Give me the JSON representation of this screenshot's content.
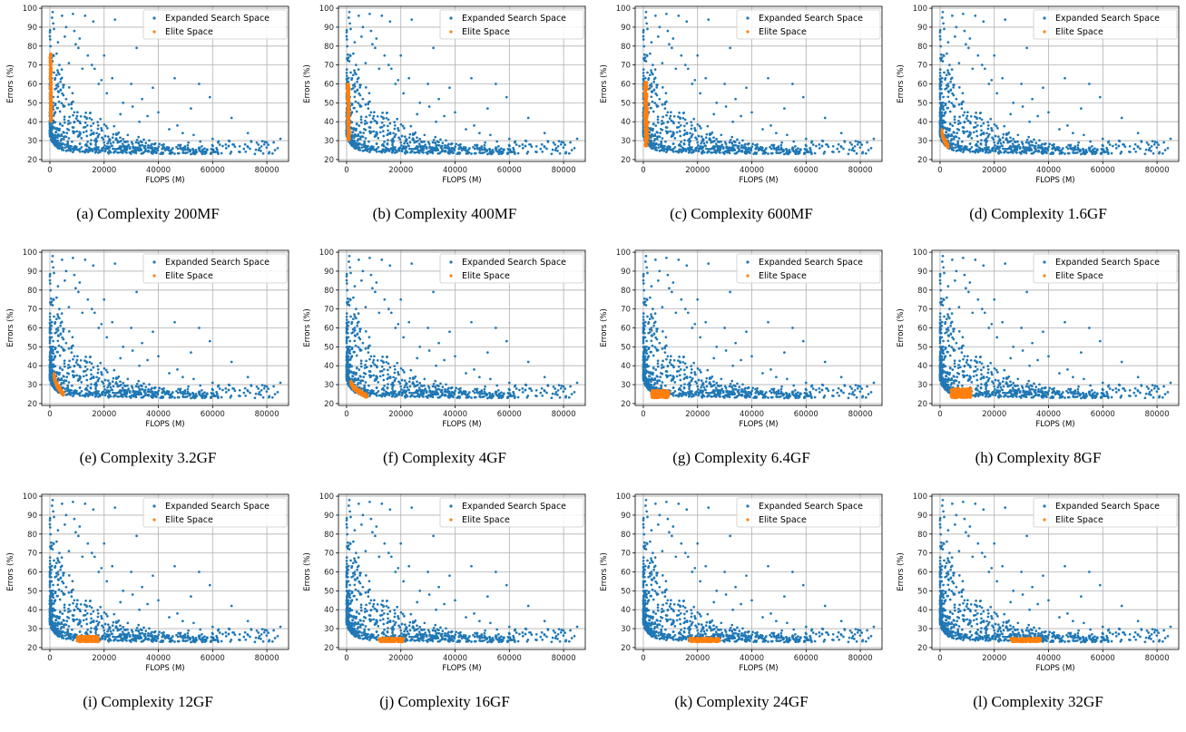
{
  "chart_data": [
    {
      "type": "scatter",
      "panel": "a",
      "caption": "(a) Complexity 200MF",
      "elite_x": [
        0,
        700
      ],
      "elite_y": [
        40,
        76
      ],
      "elite_mode": "vertical"
    },
    {
      "type": "scatter",
      "panel": "b",
      "caption": "(b) Complexity 400MF",
      "elite_x": [
        100,
        1200
      ],
      "elite_y": [
        30,
        60
      ],
      "elite_mode": "vertical"
    },
    {
      "type": "scatter",
      "panel": "c",
      "caption": "(c) Complexity 600MF",
      "elite_x": [
        200,
        1800
      ],
      "elite_y": [
        27,
        61
      ],
      "elite_mode": "vertical"
    },
    {
      "type": "scatter",
      "panel": "d",
      "caption": "(d) Complexity 1.6GF",
      "elite_x": [
        600,
        3000
      ],
      "elite_y": [
        27,
        36
      ],
      "elite_mode": "curve"
    },
    {
      "type": "scatter",
      "panel": "e",
      "caption": "(e) Complexity 3.2GF",
      "elite_x": [
        1500,
        5000
      ],
      "elite_y": [
        25,
        36
      ],
      "elite_mode": "curve"
    },
    {
      "type": "scatter",
      "panel": "f",
      "caption": "(f) Complexity 4GF",
      "elite_x": [
        1500,
        7500
      ],
      "elite_y": [
        24,
        32
      ],
      "elite_mode": "curve"
    },
    {
      "type": "scatter",
      "panel": "g",
      "caption": "(g) Complexity 6.4GF",
      "elite_x": [
        3000,
        9500
      ],
      "elite_y": [
        23,
        27
      ],
      "elite_mode": "blob"
    },
    {
      "type": "scatter",
      "panel": "h",
      "caption": "(h) Complexity 8GF",
      "elite_x": [
        4000,
        11500
      ],
      "elite_y": [
        23,
        28
      ],
      "elite_mode": "blob"
    },
    {
      "type": "scatter",
      "panel": "i",
      "caption": "(i) Complexity 12GF",
      "elite_x": [
        10000,
        18000
      ],
      "elite_y": [
        23,
        26
      ],
      "elite_mode": "band"
    },
    {
      "type": "scatter",
      "panel": "j",
      "caption": "(j) Complexity 16GF",
      "elite_x": [
        12000,
        21000
      ],
      "elite_y": [
        23,
        25
      ],
      "elite_mode": "band"
    },
    {
      "type": "scatter",
      "panel": "k",
      "caption": "(k) Complexity 24GF",
      "elite_x": [
        17000,
        28000
      ],
      "elite_y": [
        23,
        25
      ],
      "elite_mode": "band"
    },
    {
      "type": "scatter",
      "panel": "l",
      "caption": "(l) Complexity 32GF",
      "elite_x": [
        26000,
        37000
      ],
      "elite_y": [
        23,
        25
      ],
      "elite_mode": "band"
    }
  ],
  "shared": {
    "xlabel": "FLOPS (M)",
    "ylabel": "Errors (%)",
    "xlim": [
      -3000,
      88000
    ],
    "ylim": [
      19,
      101
    ],
    "xticks": [
      0,
      20000,
      40000,
      60000,
      80000
    ],
    "yticks": [
      20,
      30,
      40,
      50,
      60,
      70,
      80,
      90,
      100
    ],
    "grid": true,
    "legend_position": "top-right",
    "series_names": [
      "Expanded Search Space",
      "Elite Space"
    ],
    "colors": {
      "expanded": "#1f77b4",
      "elite": "#ff7f0e"
    },
    "expanded_space_points": [
      [
        1000,
        98
      ],
      [
        4500,
        96
      ],
      [
        8500,
        97
      ],
      [
        800,
        95
      ],
      [
        1200,
        92
      ],
      [
        1500,
        89
      ],
      [
        6000,
        90
      ],
      [
        9000,
        88
      ],
      [
        13000,
        96
      ],
      [
        16000,
        93
      ],
      [
        24000,
        94
      ],
      [
        32000,
        79
      ],
      [
        11000,
        84
      ],
      [
        9500,
        81
      ],
      [
        14000,
        75
      ],
      [
        20000,
        75
      ],
      [
        16500,
        68
      ],
      [
        19000,
        62
      ],
      [
        18000,
        60
      ],
      [
        7000,
        71
      ],
      [
        3500,
        70
      ],
      [
        12000,
        68
      ],
      [
        23000,
        63
      ],
      [
        30000,
        60
      ],
      [
        38000,
        58
      ],
      [
        46000,
        63
      ],
      [
        55000,
        60
      ],
      [
        59000,
        53
      ],
      [
        67000,
        42
      ],
      [
        52000,
        47
      ],
      [
        30500,
        48
      ],
      [
        36000,
        43
      ],
      [
        33000,
        40
      ],
      [
        26000,
        44
      ],
      [
        44000,
        36
      ],
      [
        49000,
        34
      ],
      [
        73000,
        34
      ],
      [
        85000,
        31
      ],
      [
        80000,
        29
      ],
      [
        62000,
        29
      ],
      [
        70000,
        27
      ],
      [
        65000,
        26
      ],
      [
        77000,
        25
      ],
      [
        83000,
        25
      ],
      [
        56000,
        27
      ],
      [
        58000,
        25
      ],
      [
        48000,
        27
      ],
      [
        42000,
        28
      ],
      [
        39000,
        26
      ],
      [
        35000,
        27
      ],
      [
        28000,
        27
      ],
      [
        25000,
        29
      ],
      [
        22000,
        30
      ],
      [
        20000,
        29
      ],
      [
        17000,
        31
      ],
      [
        15000,
        33
      ],
      [
        13500,
        35
      ],
      [
        12500,
        37
      ],
      [
        11000,
        40
      ],
      [
        10000,
        43
      ],
      [
        9000,
        45
      ],
      [
        8000,
        47
      ],
      [
        7000,
        49
      ],
      [
        6000,
        52
      ],
      [
        5000,
        54
      ],
      [
        4000,
        57
      ],
      [
        3000,
        60
      ],
      [
        2000,
        63
      ],
      [
        1500,
        66
      ],
      [
        1000,
        72
      ],
      [
        2500,
        76
      ],
      [
        3000,
        82
      ],
      [
        5500,
        85
      ],
      [
        10500,
        79
      ],
      [
        15500,
        70
      ],
      [
        21000,
        55
      ],
      [
        27000,
        50
      ],
      [
        34000,
        52
      ],
      [
        40000,
        45
      ],
      [
        47000,
        38
      ],
      [
        53000,
        33
      ],
      [
        60000,
        31
      ],
      [
        66000,
        30
      ],
      [
        72000,
        28
      ],
      [
        78000,
        27
      ],
      [
        84000,
        26
      ],
      [
        61000,
        24
      ],
      [
        44500,
        24
      ],
      [
        31000,
        24
      ],
      [
        18500,
        24
      ],
      [
        8500,
        24
      ],
      [
        5000,
        25
      ],
      [
        3000,
        26
      ],
      [
        2000,
        28
      ],
      [
        1500,
        30
      ],
      [
        1200,
        33
      ],
      [
        900,
        36
      ],
      [
        700,
        40
      ],
      [
        600,
        45
      ],
      [
        500,
        50
      ]
    ]
  }
}
